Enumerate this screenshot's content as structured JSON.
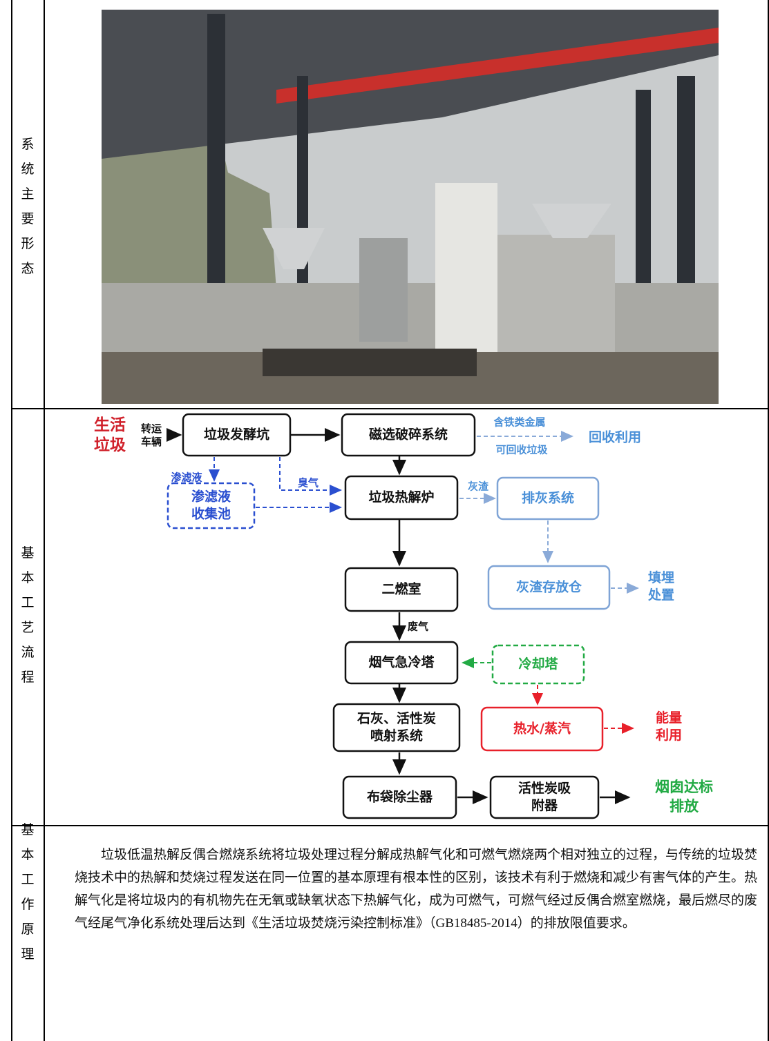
{
  "rows": [
    {
      "label": "系统主要形态"
    },
    {
      "label": "基本工艺流程",
      "flow": {
        "nodes": [
          "垃圾发酵坑",
          "磁选破碎系统",
          "垃圾热解炉",
          [
            "渗滤液",
            "收集池"
          ],
          "排灰系统",
          "灰渣存放仓",
          "二燃室",
          "烟气急冷塔",
          "冷却塔",
          [
            "石灰、活性炭",
            "喷射系统"
          ],
          "热水/蒸汽",
          "布袋除尘器",
          [
            "活性炭吸",
            "附器"
          ]
        ],
        "texts": [
          [
            "生活",
            "垃圾"
          ],
          [
            "转运",
            "车辆"
          ],
          "含铁类金属",
          "可回收垃圾",
          "回收利用",
          "渗滤液",
          "臭气",
          "灰渣",
          [
            "填埋",
            "处置"
          ],
          "废气",
          [
            "能量",
            "利用"
          ],
          [
            "烟囱达标",
            "排放"
          ]
        ]
      }
    },
    {
      "label": "基本工作原理",
      "text": "垃圾低温热解反偶合燃烧系统将垃圾处理过程分解成热解气化和可燃气燃烧两个相对独立的过程，与传统的垃圾焚烧技术中的热解和焚烧过程发送在同一位置的基本原理有根本性的区别，该技术有利于燃烧和减少有害气体的产生。热解气化是将垃圾内的有机物先在无氧或缺氧状态下热解气化，成为可燃气，可燃气经过反偶合燃室燃烧，最后燃尽的废气经尾气净化系统处理后达到《生活垃圾焚烧污染控制标准》（GB18485-2014）的排放限值要求。"
    }
  ]
}
